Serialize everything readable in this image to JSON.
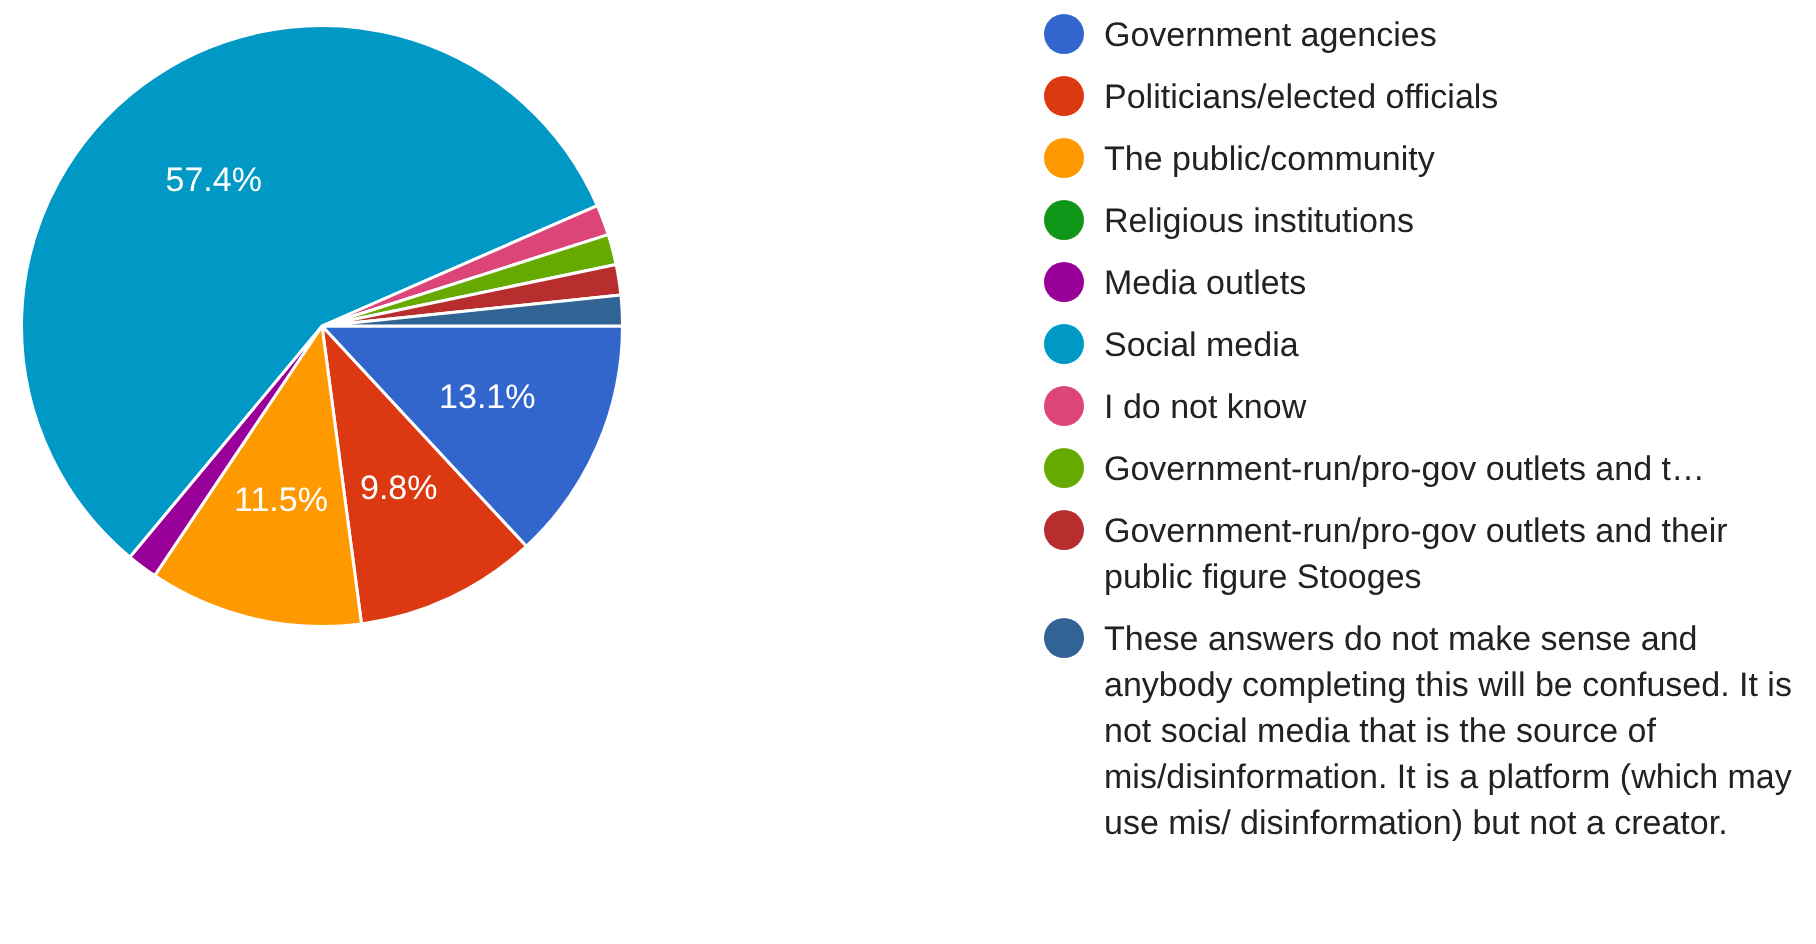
{
  "chart_data": {
    "type": "pie",
    "categories": [
      "Government agencies",
      "Politicians/elected officials",
      "The public/community",
      "Religious institutions",
      "Media outlets",
      "Social media",
      "I do not know",
      "Government-run/pro-gov outlets and t…",
      "Government-run/pro-gov outlets and their public figure Stooges",
      "These answers do not make sense and anybody completing this will be confused. It is not social media that is the source of mis/disinformation. It is a platform (which may use mis/ disinformation) but not a creator."
    ],
    "values": [
      13.1,
      9.8,
      11.5,
      0,
      1.64,
      57.4,
      1.64,
      1.64,
      1.64,
      1.64
    ],
    "colors": [
      "#3366cc",
      "#dc3912",
      "#ff9900",
      "#109618",
      "#990099",
      "#0099c6",
      "#dd4477",
      "#66aa00",
      "#b82e2e",
      "#316395"
    ],
    "value_labels": [
      "13.1%",
      "9.8%",
      "11.5%",
      null,
      null,
      "57.4%",
      null,
      null,
      null,
      null
    ],
    "legend": "right"
  }
}
